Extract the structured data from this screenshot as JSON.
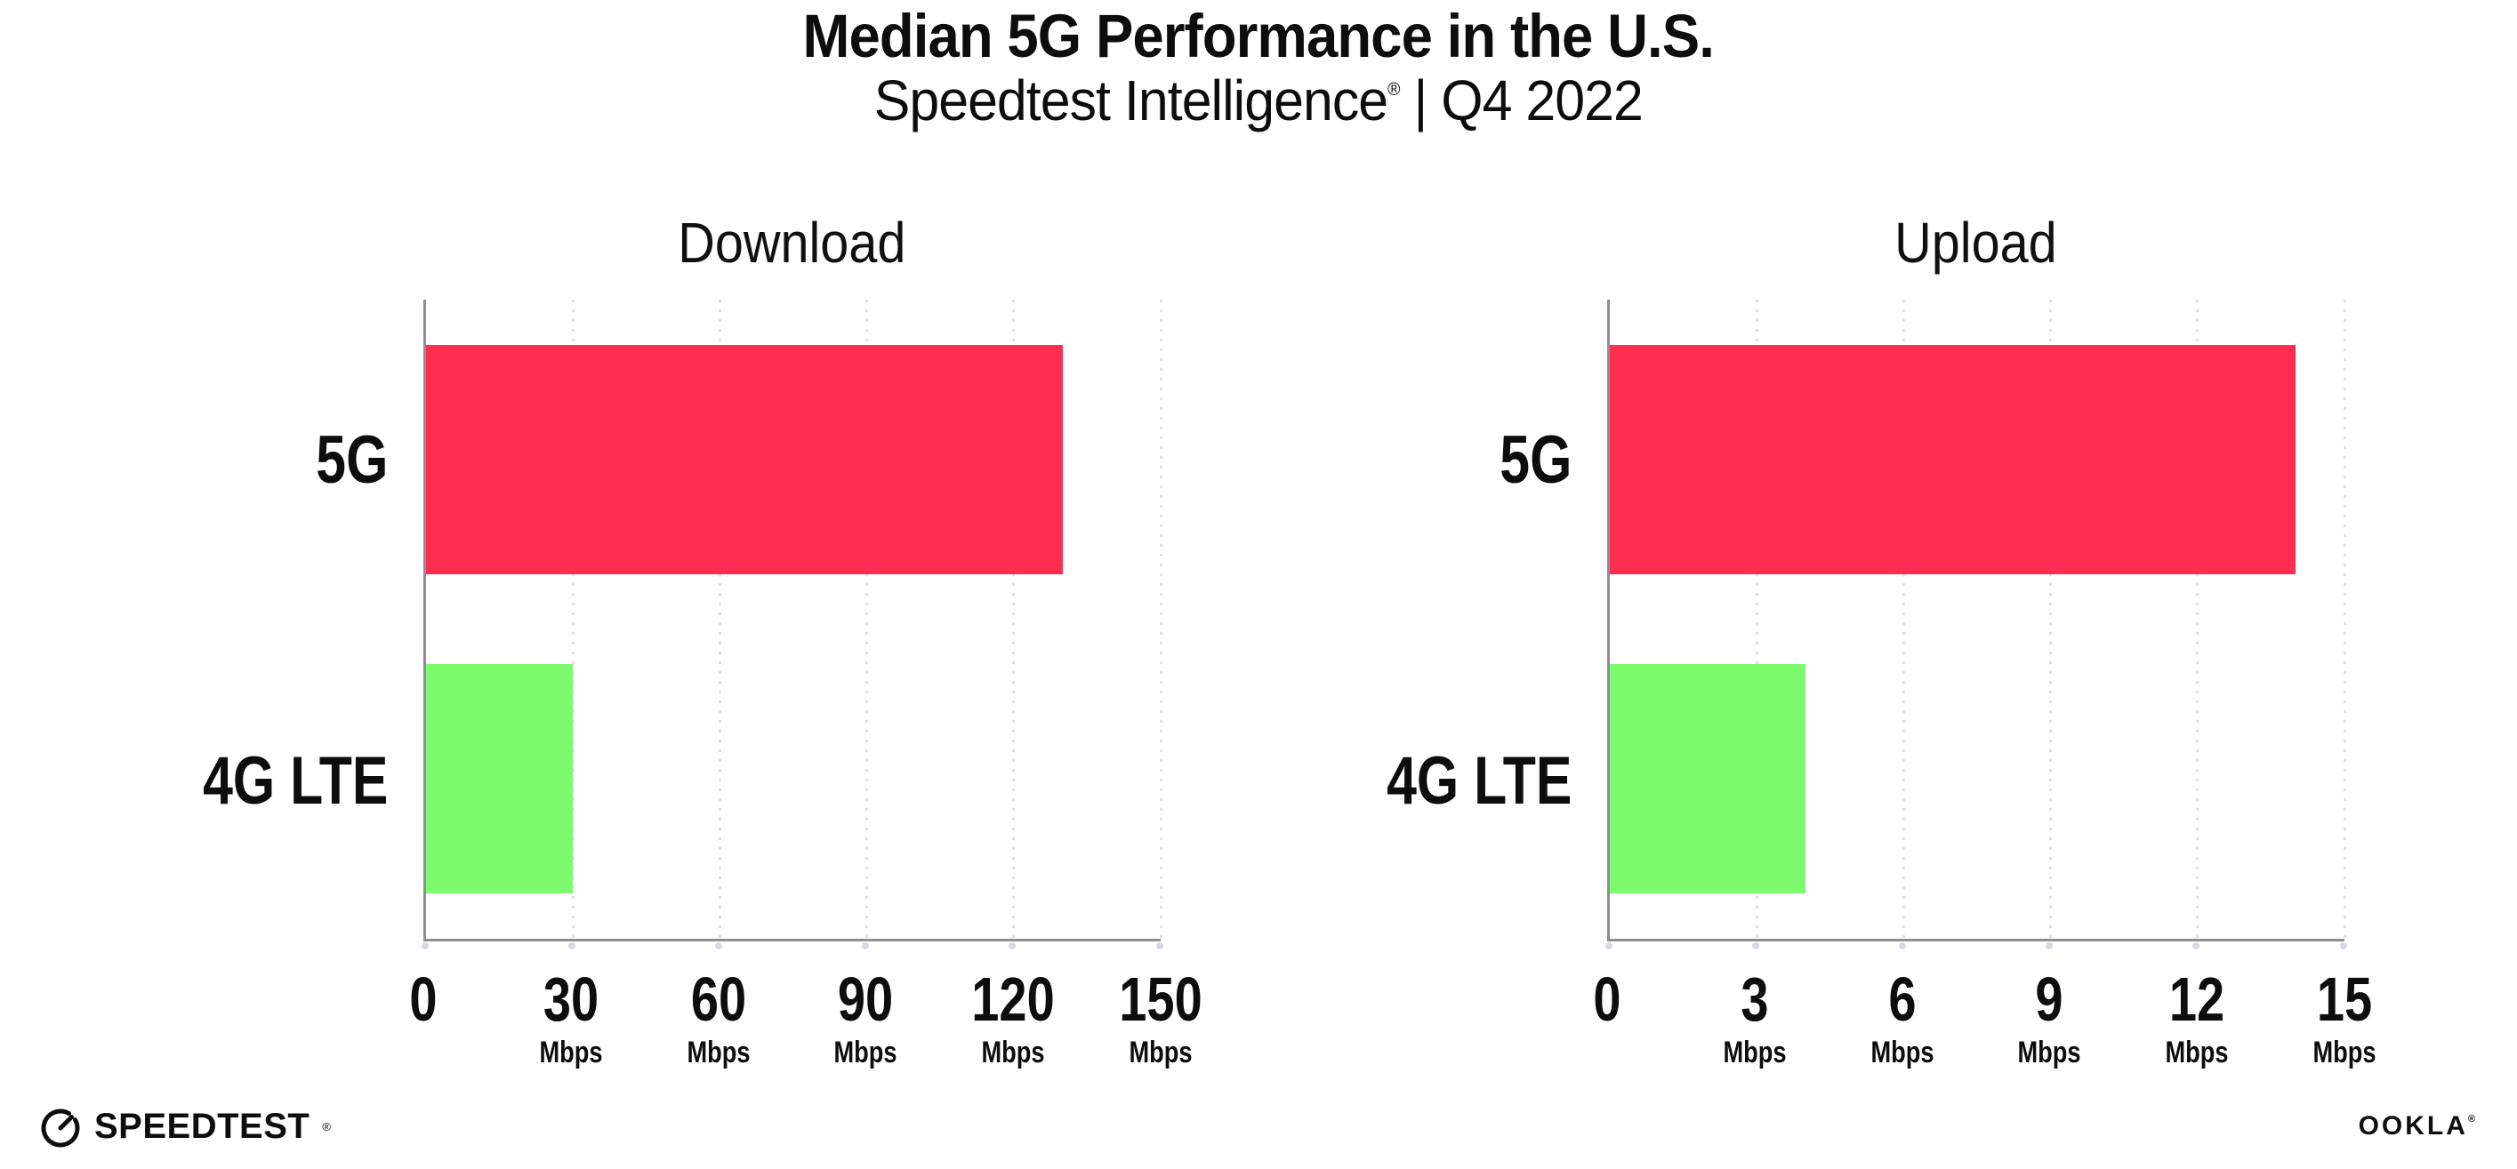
{
  "header": {
    "title": "Median 5G Performance in the U.S.",
    "subtitle_brand": "Speedtest Intelligence",
    "subtitle_mark": "®",
    "subtitle_rest": " | Q4 2022"
  },
  "chart_data": [
    {
      "type": "bar",
      "orientation": "horizontal",
      "title": "Download",
      "categories": [
        "5G",
        "4G LTE"
      ],
      "values": [
        130,
        30
      ],
      "unit": "Mbps",
      "xlim": [
        0,
        150
      ],
      "xticks": [
        0,
        30,
        60,
        90,
        120,
        150
      ],
      "bar_colors": [
        "#ff2d50",
        "#7dfa6d"
      ],
      "grid": "dotted-vertical",
      "legend": "none"
    },
    {
      "type": "bar",
      "orientation": "horizontal",
      "title": "Upload",
      "categories": [
        "5G",
        "4G LTE"
      ],
      "values": [
        14,
        4
      ],
      "unit": "Mbps",
      "xlim": [
        0,
        15
      ],
      "xticks": [
        0,
        3,
        6,
        9,
        12,
        15
      ],
      "bar_colors": [
        "#ff2d50",
        "#7dfa6d"
      ],
      "grid": "dotted-vertical",
      "legend": "none"
    }
  ],
  "footer": {
    "speedtest_label": "SPEEDTEST",
    "speedtest_mark": "®",
    "speedtest_icon": "speedometer-gauge-icon",
    "ookla_label": "OOKLA",
    "ookla_mark": "®"
  },
  "colors": {
    "bar_5g": "#ff2d50",
    "bar_4g_lte": "#7dfa6d",
    "axis": "#8f8f8f",
    "gridline": "#dcdce6",
    "text": "#0d0d0d",
    "background": "#ffffff"
  }
}
